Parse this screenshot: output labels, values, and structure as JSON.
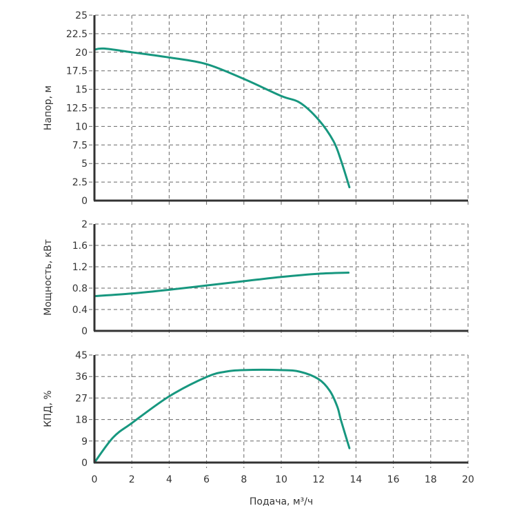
{
  "colors": {
    "curve": "#17977f",
    "axis": "#333333",
    "grid": "#666666"
  },
  "chart_data": [
    {
      "type": "line",
      "ylabel": "Напор, м",
      "ylim": [
        0,
        25
      ],
      "yticks": [
        "0",
        "2.5",
        "5",
        "7.5",
        "10",
        "12.5",
        "15",
        "17.5",
        "20",
        "22.5",
        "25"
      ],
      "xlim": [
        0,
        20
      ],
      "grid": true,
      "series": [
        {
          "name": "Напор",
          "x": [
            0,
            0.5,
            2,
            4,
            6,
            8,
            10,
            11,
            12,
            12.8,
            13.2,
            13.65
          ],
          "y": [
            20.35,
            20.5,
            20.0,
            19.3,
            18.4,
            16.4,
            14.1,
            13.2,
            10.9,
            8.0,
            5.4,
            1.8
          ]
        }
      ]
    },
    {
      "type": "line",
      "ylabel": "Мощность, кВт",
      "ylim": [
        0,
        2
      ],
      "yticks": [
        "0",
        "0.4",
        "0.8",
        "1.2",
        "1.6",
        "2"
      ],
      "xlim": [
        0,
        20
      ],
      "grid": true,
      "series": [
        {
          "name": "Мощность",
          "x": [
            0,
            2,
            4,
            6,
            8,
            10,
            12,
            13.6
          ],
          "y": [
            0.65,
            0.7,
            0.77,
            0.85,
            0.93,
            1.01,
            1.07,
            1.09
          ]
        }
      ]
    },
    {
      "type": "line",
      "ylabel": "КПД, %",
      "ylim": [
        0,
        45
      ],
      "yticks": [
        "0",
        "9",
        "18",
        "27",
        "36",
        "45"
      ],
      "xlim": [
        0,
        20
      ],
      "xlabel": "Подача, м³/ч",
      "xticks": [
        "0",
        "2",
        "4",
        "6",
        "8",
        "10",
        "12",
        "14",
        "16",
        "18",
        "20"
      ],
      "grid": true,
      "series": [
        {
          "name": "КПД",
          "x": [
            0,
            1,
            2,
            4,
            6,
            7,
            8,
            10,
            11,
            12,
            12.6,
            13,
            13.2,
            13.65
          ],
          "y": [
            0,
            10.5,
            16.5,
            27.7,
            35.8,
            38,
            38.7,
            38.7,
            38,
            34.9,
            30,
            23.4,
            17.6,
            6
          ]
        }
      ]
    }
  ]
}
